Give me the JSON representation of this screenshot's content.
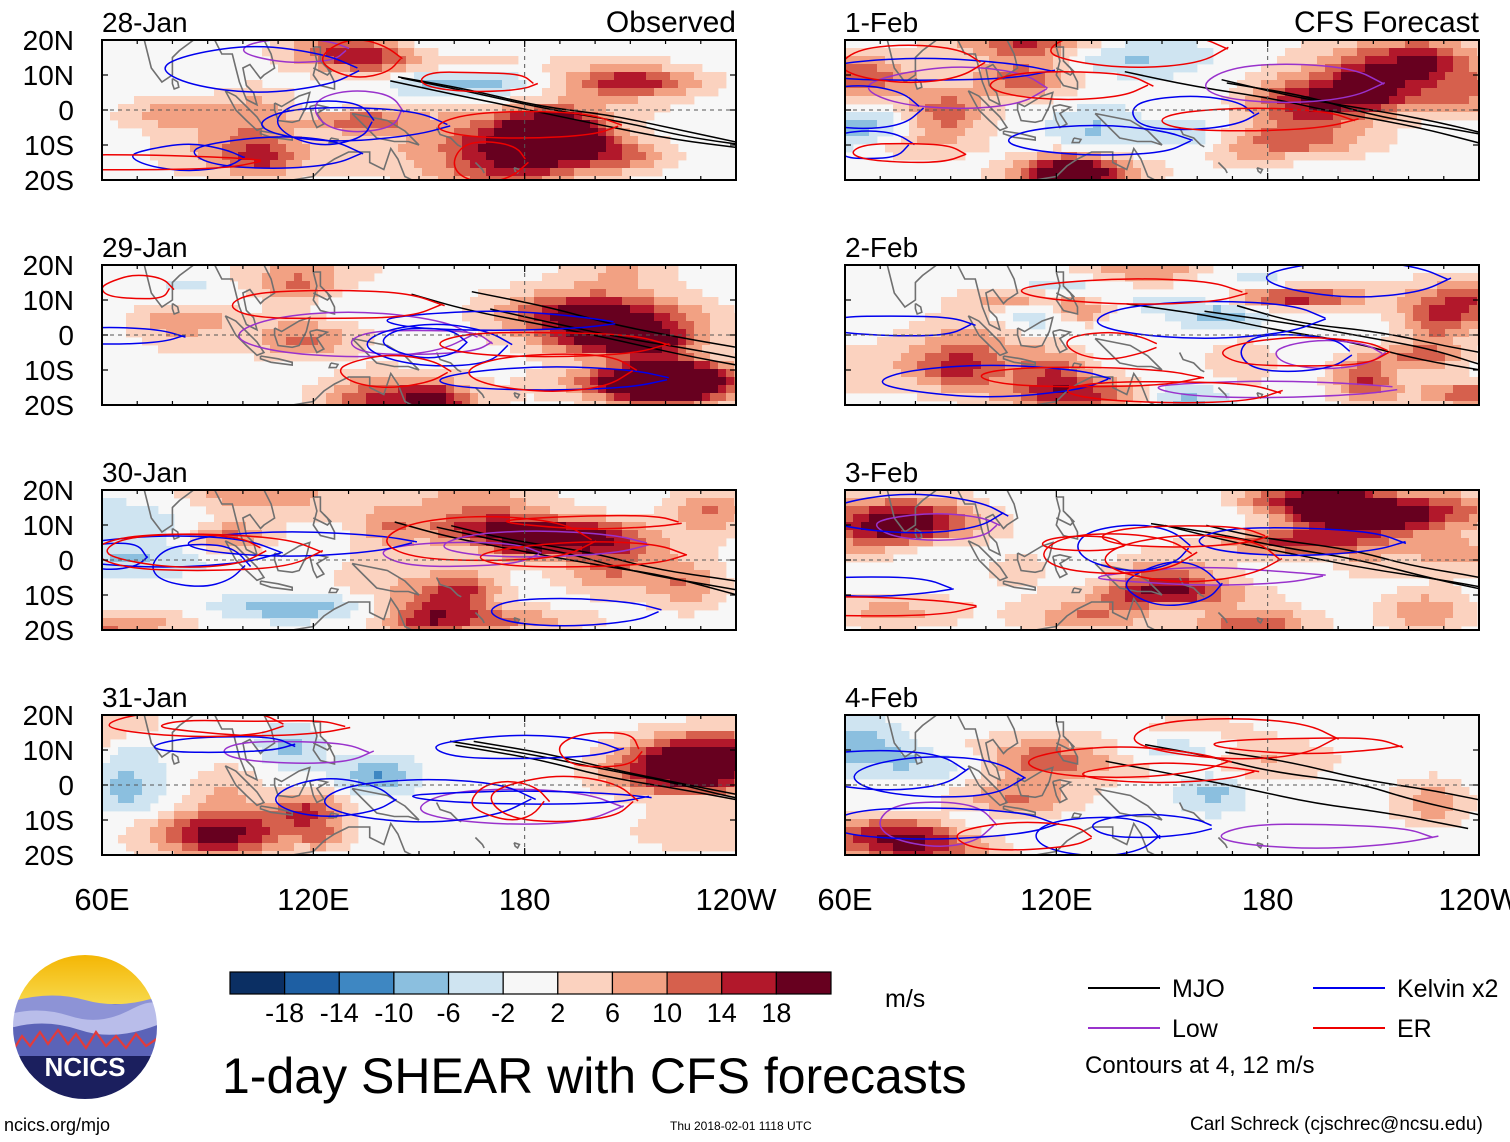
{
  "chart_data": {
    "type": "heatmap",
    "title": "1-day SHEAR with CFS forecasts",
    "panel_labels": {
      "observed": "Observed",
      "forecast": "CFS Forecast"
    },
    "columns": [
      {
        "name": "Observed",
        "dates": [
          "28-Jan",
          "29-Jan",
          "30-Jan",
          "31-Jan"
        ]
      },
      {
        "name": "CFS Forecast",
        "dates": [
          "1-Feb",
          "2-Feb",
          "3-Feb",
          "4-Feb"
        ]
      }
    ],
    "x_ticks": [
      "60E",
      "120E",
      "180",
      "120W"
    ],
    "x_range_deg_east": [
      60,
      240
    ],
    "y_ticks": [
      "20N",
      "10N",
      "0",
      "10S",
      "20S"
    ],
    "y_range_deg": [
      -20,
      20
    ],
    "colorbar": {
      "unit": "m/s",
      "ticks": [
        "-18",
        "-14",
        "-10",
        "-6",
        "-2",
        "2",
        "6",
        "10",
        "14",
        "18"
      ],
      "colors": [
        "#0b2f63",
        "#1e5fa3",
        "#3e87c2",
        "#8bbfdf",
        "#cfe4f1",
        "#f7f7f7",
        "#fbd2bf",
        "#f2a183",
        "#d6604d",
        "#b2182b",
        "#67001f"
      ]
    },
    "legend": [
      {
        "label": "MJO",
        "color": "#000000"
      },
      {
        "label": "Low",
        "color": "#9932cc"
      },
      {
        "label": "Kelvin x2",
        "color": "#0000ee"
      },
      {
        "label": "ER",
        "color": "#ee0000"
      }
    ],
    "legend_note": "Contours at 4, 12 m/s"
  },
  "footer": {
    "logo_text": "NCICS",
    "site": "ncics.org/mjo",
    "timestamp": "Thu 2018-02-01 1118 UTC",
    "author": "Carl Schreck (cjschrec@ncsu.edu)"
  }
}
